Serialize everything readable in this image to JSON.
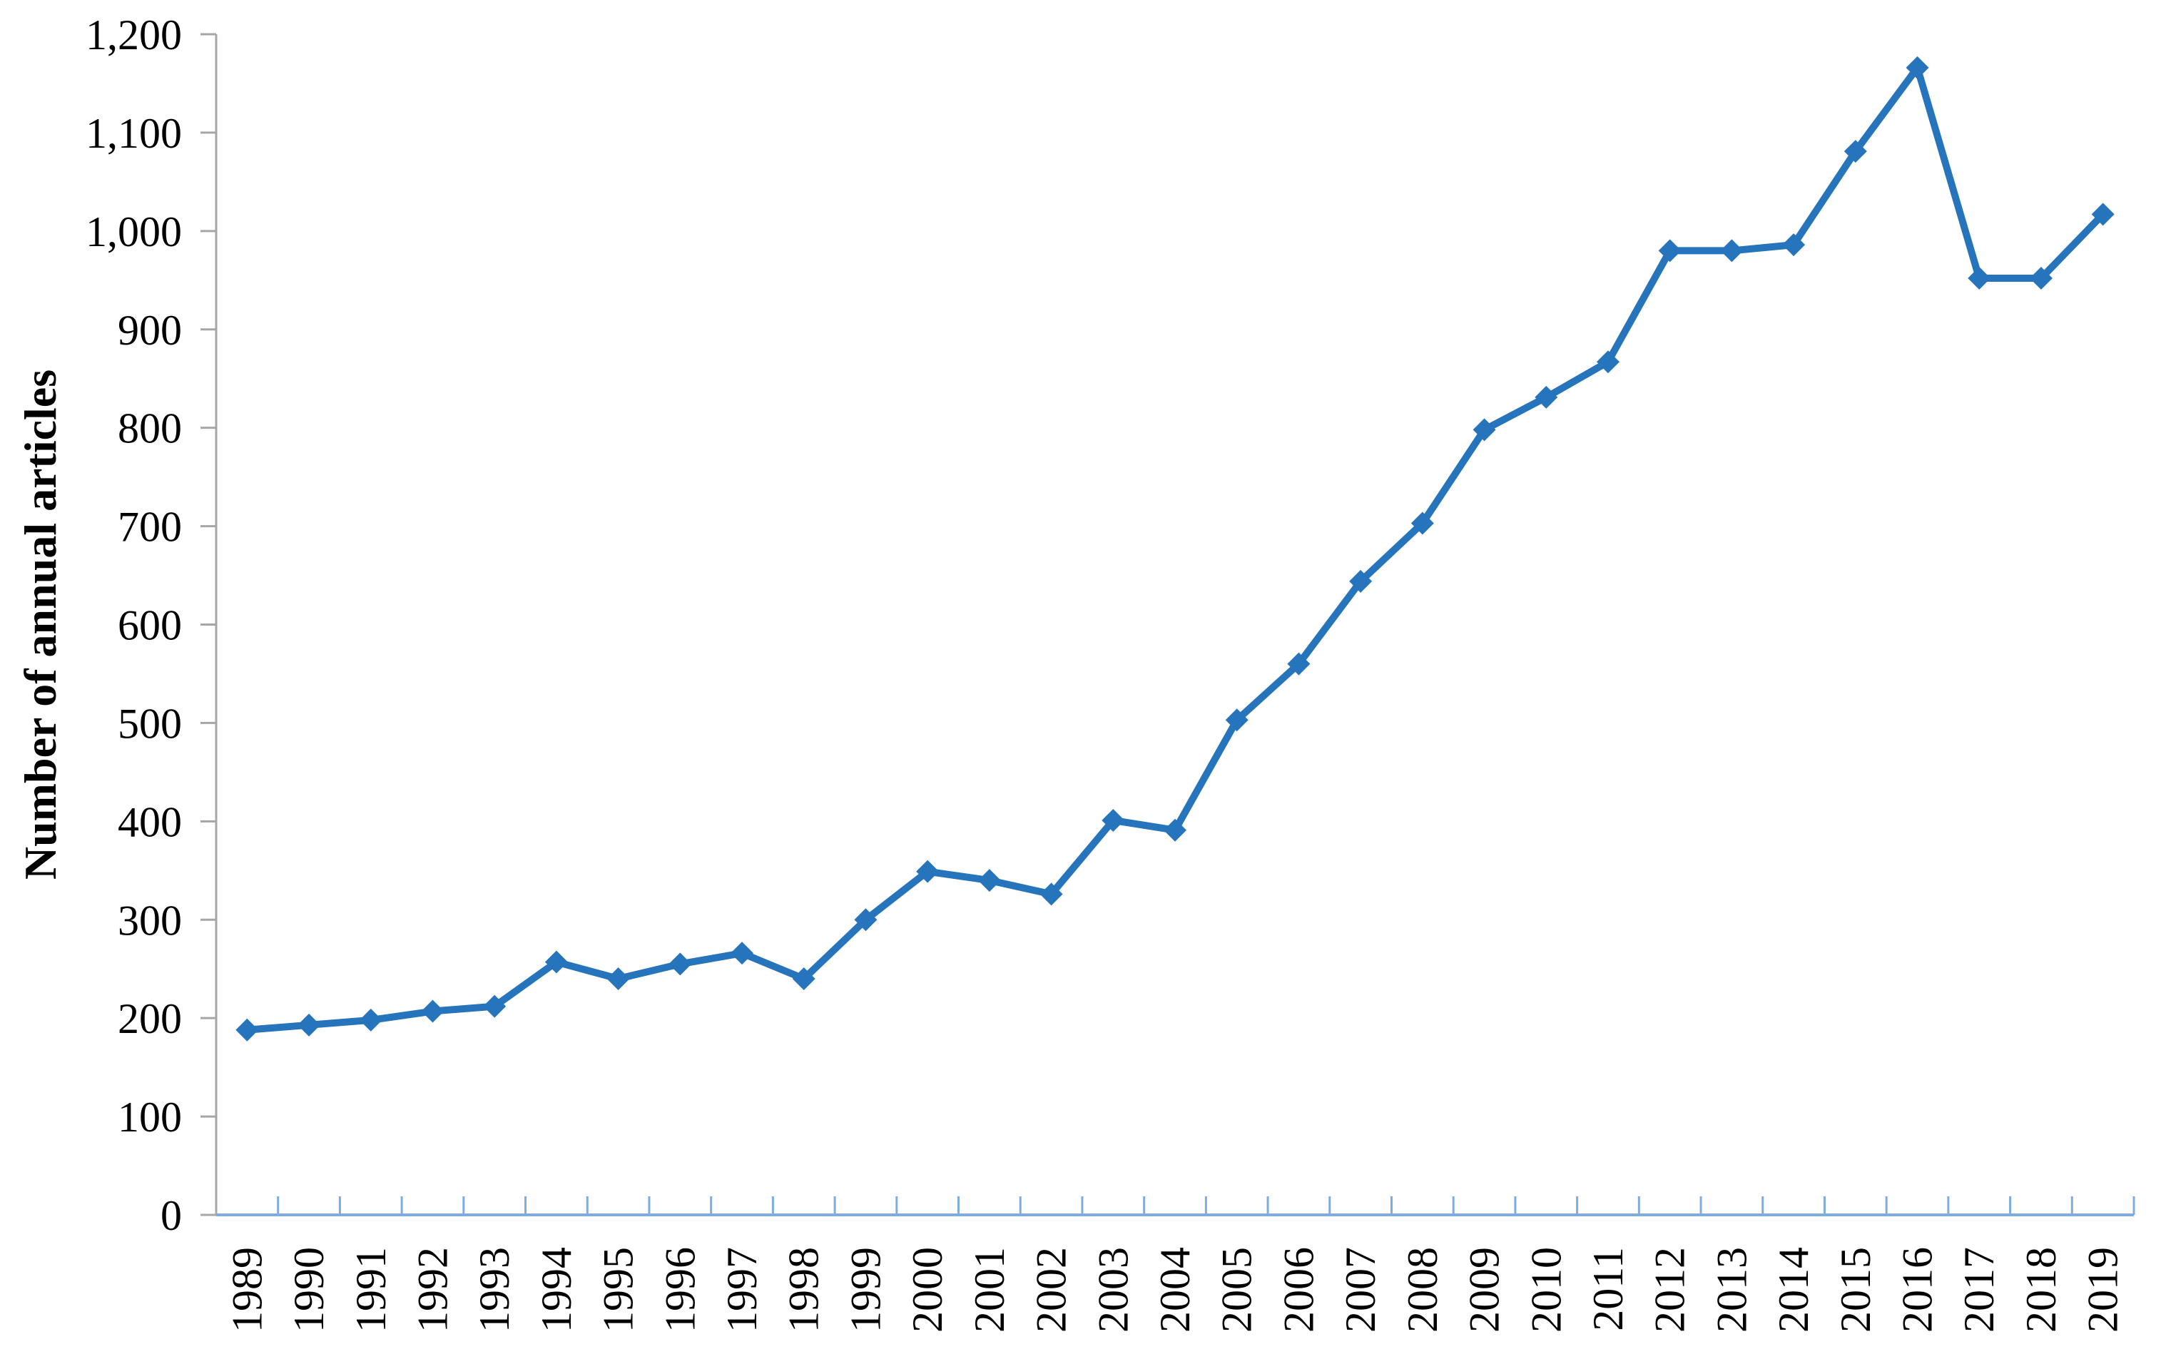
{
  "chart_data": {
    "type": "line",
    "title": "",
    "xlabel": "",
    "ylabel": "Number of annual articles",
    "categories": [
      "1989",
      "1990",
      "1991",
      "1992",
      "1993",
      "1994",
      "1995",
      "1996",
      "1997",
      "1998",
      "1999",
      "2000",
      "2001",
      "2002",
      "2003",
      "2004",
      "2005",
      "2006",
      "2007",
      "2008",
      "2009",
      "2010",
      "2011",
      "2012",
      "2013",
      "2014",
      "2015",
      "2016",
      "2017",
      "2018",
      "2019"
    ],
    "series": [
      {
        "name": "Number of annual articles",
        "marker": "diamond",
        "values": [
          188,
          193,
          198,
          207,
          212,
          257,
          240,
          255,
          266,
          240,
          300,
          349,
          340,
          326,
          401,
          391,
          503,
          560,
          644,
          703,
          798,
          831,
          867,
          980,
          980,
          986,
          1081,
          1166,
          952,
          952,
          1017
        ]
      }
    ],
    "ylim": [
      0,
      1200
    ],
    "ytick_step": 100,
    "y_tick_labels": [
      "0",
      "100",
      "200",
      "300",
      "400",
      "500",
      "600",
      "700",
      "800",
      "900",
      "1,000",
      "1,100",
      "1,200"
    ],
    "grid": false,
    "legend_position": "none",
    "colors": {
      "line": "#2674BB",
      "marker": "#2674BB",
      "x_axis": "#7FACDE",
      "x_tick": "#7FACDE",
      "y_axis": "#A6A6A6",
      "y_tick": "#A6A6A6",
      "text": "#000000"
    }
  }
}
